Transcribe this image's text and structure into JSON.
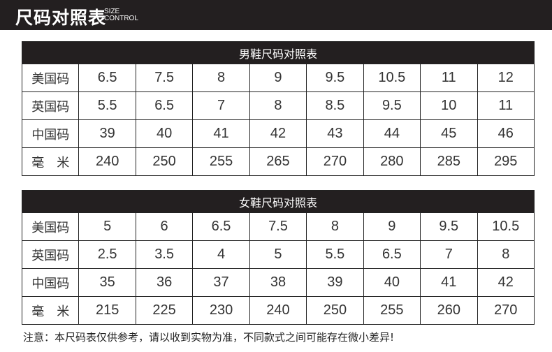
{
  "header": {
    "title": "尺码对照表",
    "subtitle_line1": "SIZE",
    "subtitle_line2": "CONTROL"
  },
  "men": {
    "title": "男鞋尺码对照表",
    "rows": [
      {
        "label": "美国码",
        "values": [
          "6.5",
          "7.5",
          "8",
          "9",
          "9.5",
          "10.5",
          "11",
          "12"
        ]
      },
      {
        "label": "英国码",
        "values": [
          "5.5",
          "6.5",
          "7",
          "8",
          "8.5",
          "9.5",
          "10",
          "11"
        ]
      },
      {
        "label": "中国码",
        "values": [
          "39",
          "40",
          "41",
          "42",
          "43",
          "44",
          "45",
          "46"
        ]
      },
      {
        "label": "毫　米",
        "values": [
          "240",
          "250",
          "255",
          "265",
          "270",
          "280",
          "285",
          "295"
        ]
      }
    ]
  },
  "women": {
    "title": "女鞋尺码对照表",
    "rows": [
      {
        "label": "美国码",
        "values": [
          "5",
          "6",
          "6.5",
          "7.5",
          "8",
          "9",
          "9.5",
          "10.5"
        ]
      },
      {
        "label": "英国码",
        "values": [
          "2.5",
          "3.5",
          "4",
          "5",
          "5.5",
          "6.5",
          "7",
          "8"
        ]
      },
      {
        "label": "中国码",
        "values": [
          "35",
          "36",
          "37",
          "38",
          "39",
          "40",
          "41",
          "42"
        ]
      },
      {
        "label": "毫　米",
        "values": [
          "215",
          "225",
          "230",
          "240",
          "250",
          "255",
          "260",
          "270"
        ]
      }
    ]
  },
  "note": "注意：本尺码表仅供参考，请以收到实物为准，不同款式之间可能存在微小差异!"
}
